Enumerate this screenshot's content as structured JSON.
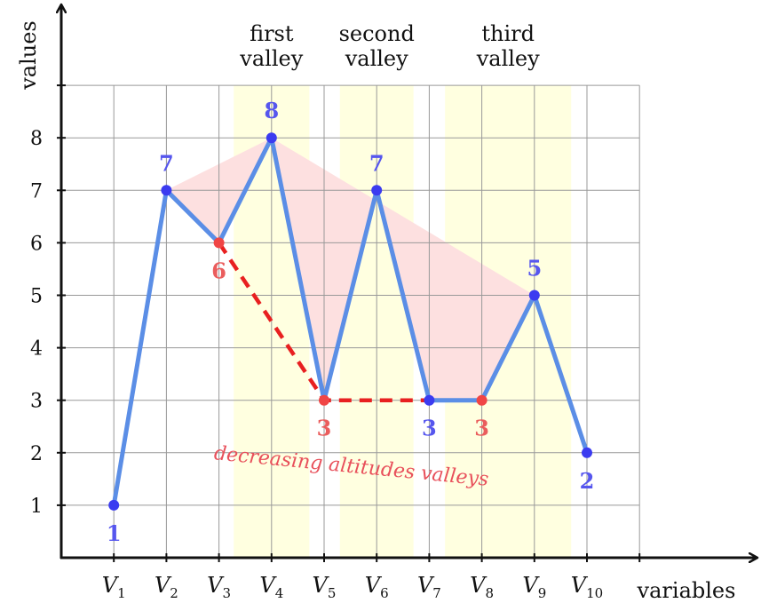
{
  "chart_data": {
    "type": "line",
    "xlabel": "variables",
    "ylabel": "values",
    "categories": [
      "V1",
      "V2",
      "V3",
      "V4",
      "V5",
      "V6",
      "V7",
      "V8",
      "V9",
      "V10"
    ],
    "x_tick_labels": [
      {
        "base": "V",
        "sub": "1"
      },
      {
        "base": "V",
        "sub": "2"
      },
      {
        "base": "V",
        "sub": "3"
      },
      {
        "base": "V",
        "sub": "4"
      },
      {
        "base": "V",
        "sub": "5"
      },
      {
        "base": "V",
        "sub": "6"
      },
      {
        "base": "V",
        "sub": "7"
      },
      {
        "base": "V",
        "sub": "8"
      },
      {
        "base": "V",
        "sub": "9"
      },
      {
        "base": "V",
        "sub": "10"
      }
    ],
    "y_ticks": [
      1,
      2,
      3,
      4,
      5,
      6,
      7,
      8
    ],
    "ylim": [
      0,
      9
    ],
    "grid": true,
    "series": [
      {
        "values": [
          1,
          7,
          6,
          8,
          3,
          7,
          3,
          3,
          5,
          2
        ],
        "color": "#5b8ee6"
      }
    ],
    "point_labels": [
      "1",
      "7",
      "6",
      "8",
      "3",
      "7",
      "3",
      "3",
      "5",
      "2"
    ],
    "highlight_points": [
      2,
      4,
      7
    ],
    "valley_path": [
      2,
      4,
      6,
      7
    ],
    "valley_bands": [
      {
        "label_line1": "first",
        "label_line2": "valley",
        "from": 2.28,
        "to": 3.72
      },
      {
        "label_line1": "second",
        "label_line2": "valley",
        "from": 4.3,
        "to": 5.7
      },
      {
        "label_line1": "third",
        "label_line2": "valley",
        "from": 6.3,
        "to": 8.7
      }
    ],
    "annotation": "decreasing altitudes valleys",
    "colors": {
      "series": "#5b8ee6",
      "point": "#3b3bf0",
      "highlight": "#f04545",
      "highlight_label": "#ea5d5d",
      "point_label": "#5656ee",
      "valley_dash": "#e82020",
      "band": "#ffffe0",
      "fill": "#fde0e0",
      "grid": "#999999"
    }
  }
}
